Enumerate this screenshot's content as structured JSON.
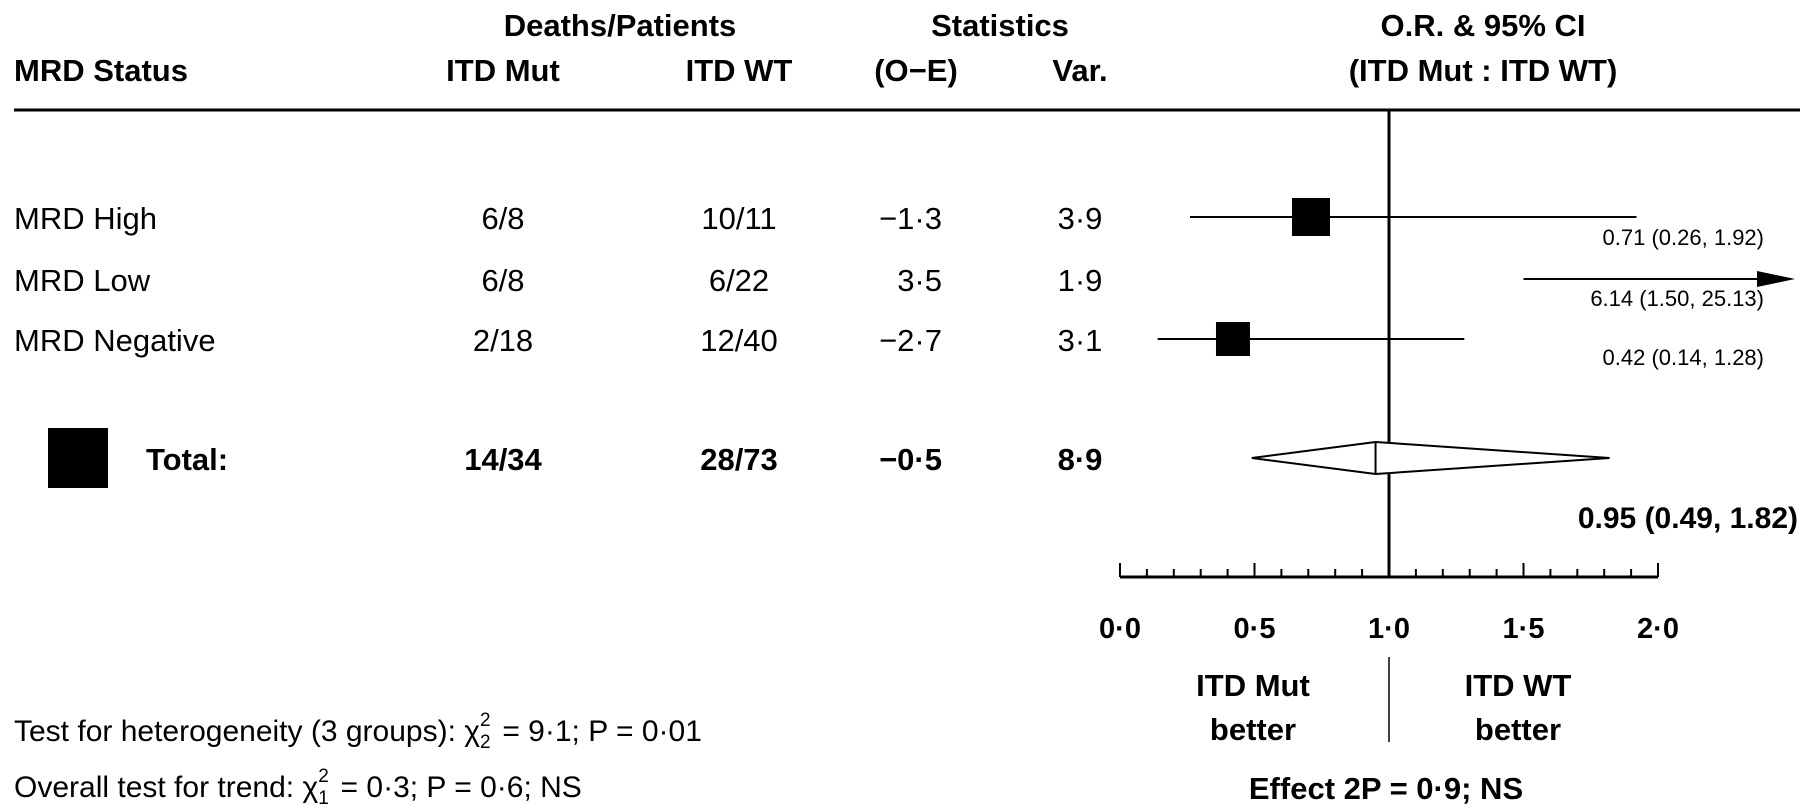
{
  "header": {
    "group_deaths": "Deaths/Patients",
    "group_stats": "Statistics",
    "group_or": "O.R. & 95% CI",
    "col_status": "MRD Status",
    "col_mut": "ITD Mut",
    "col_wt": "ITD WT",
    "col_oe": "(O−E)",
    "col_var": "Var.",
    "col_or": "(ITD Mut : ITD WT)"
  },
  "rows": [
    {
      "label": "MRD High",
      "mut": "6/8",
      "wt": "10/11",
      "oe": "−1·3",
      "var": "3·9",
      "ci_text": "0.71 (0.26, 1.92)"
    },
    {
      "label": "MRD Low",
      "mut": "6/8",
      "wt": "6/22",
      "oe": "3·5",
      "var": "1·9",
      "ci_text": "6.14 (1.50, 25.13)"
    },
    {
      "label": "MRD Negative",
      "mut": "2/18",
      "wt": "12/40",
      "oe": "−2·7",
      "var": "3·1",
      "ci_text": "0.42 (0.14, 1.28)"
    }
  ],
  "total": {
    "label": "Total:",
    "mut": "14/34",
    "wt": "28/73",
    "oe": "−0·5",
    "var": "8·9",
    "ci_text": "0.95 (0.49, 1.82)"
  },
  "axis": {
    "ticks": [
      "0·0",
      "0·5",
      "1·0",
      "1·5",
      "2·0"
    ],
    "left_label_1": "ITD Mut",
    "left_label_2": "better",
    "right_label_1": "ITD WT",
    "right_label_2": "better",
    "effect": "Effect 2P = 0·9; NS"
  },
  "footer": {
    "het_pre": "Test for heterogeneity (3 groups): ",
    "het_chi": "χ",
    "het_sup": "2",
    "het_sub": "2",
    "het_post": " = 9·1; P = 0·01",
    "trend_pre": "Overall test for trend: ",
    "trend_chi": "χ",
    "trend_sup": "2",
    "trend_sub": "1",
    "trend_post": " = 0·3; P = 0·6; NS"
  },
  "chart_data": {
    "type": "forest",
    "xlim": [
      0,
      2
    ],
    "x_ticks": [
      0,
      0.5,
      1.0,
      1.5,
      2.0
    ],
    "reference_line": 1.0,
    "studies": [
      {
        "name": "MRD High",
        "or": 0.71,
        "lower": 0.26,
        "upper": 1.92
      },
      {
        "name": "MRD Low",
        "or": 6.14,
        "lower": 1.5,
        "upper": 25.13
      },
      {
        "name": "MRD Negative",
        "or": 0.42,
        "lower": 0.14,
        "upper": 1.28
      }
    ],
    "total": {
      "name": "Total:",
      "or": 0.95,
      "lower": 0.49,
      "upper": 1.82
    }
  }
}
